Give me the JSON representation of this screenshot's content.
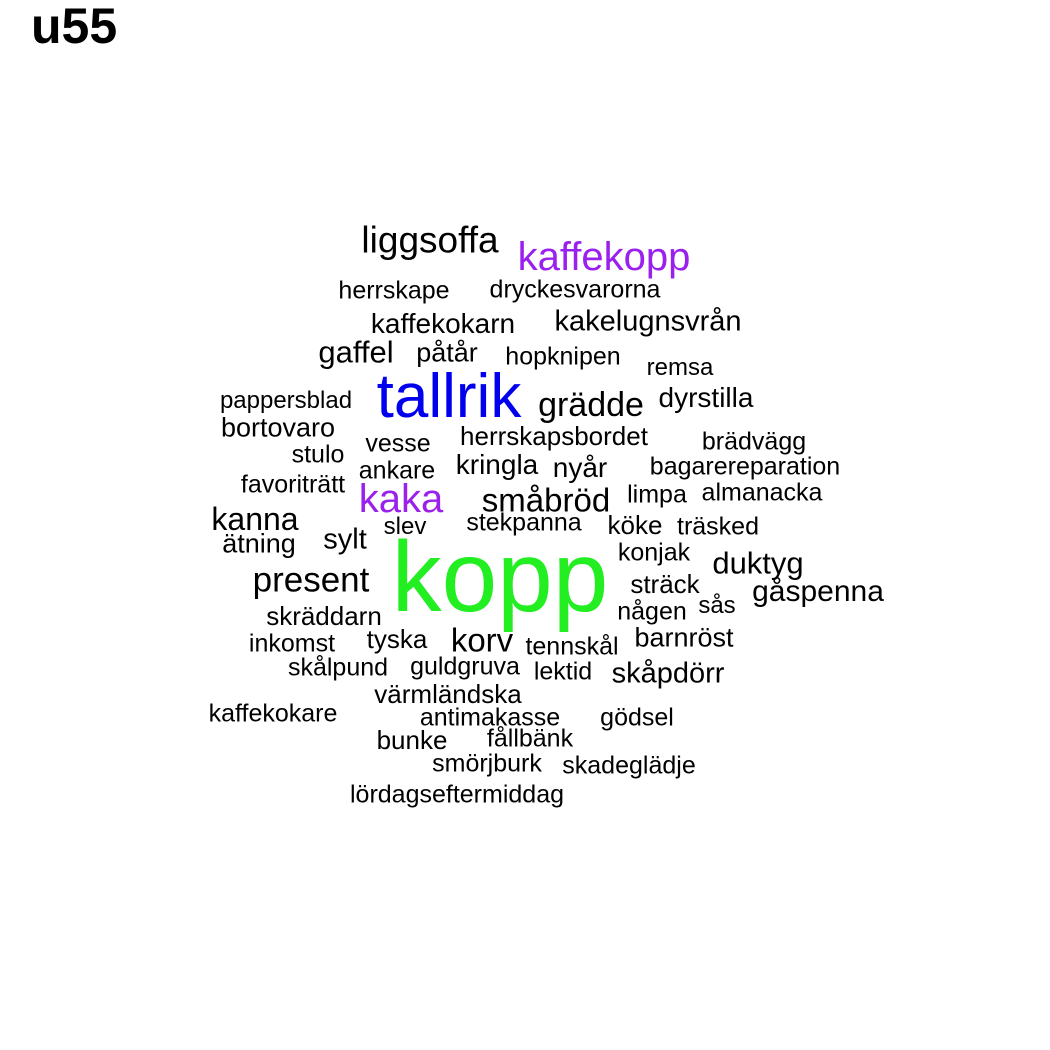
{
  "title": "u55",
  "colors": {
    "default": "#000000",
    "tallrik": "#0000ee",
    "kaffekopp": "#9a20ee",
    "kaka": "#9a20ee",
    "kopp": "#22ee22"
  },
  "words": [
    "liggsoffa",
    "kaffekopp",
    "herrskape",
    "dryckesvarorna",
    "kaffekokarn",
    "kakelugnsvrån",
    "gaffel",
    "påtår",
    "hopknipen",
    "remsa",
    "pappersblad",
    "tallrik",
    "grädde",
    "dyrstilla",
    "bortovaro",
    "vesse",
    "herrskapsbordet",
    "brädvägg",
    "stulo",
    "ankare",
    "kringla",
    "nyår",
    "bagarereparation",
    "favoriträtt",
    "kaka",
    "småbröd",
    "limpa",
    "almanacka",
    "kanna",
    "slev",
    "stekpanna",
    "köke",
    "träsked",
    "ätning",
    "sylt",
    "konjak",
    "duktyg",
    "present",
    "kopp",
    "sträck",
    "gåspenna",
    "skräddarn",
    "någen",
    "sås",
    "inkomst",
    "tyska",
    "korv",
    "tennskål",
    "barnröst",
    "skålpund",
    "guldgruva",
    "lektid",
    "skåpdörr",
    "värmländska",
    "kaffekokare",
    "antimakasse",
    "gödsel",
    "bunke",
    "fållbänk",
    "smörjburk",
    "skadeglädje",
    "lördagseftermiddag"
  ]
}
